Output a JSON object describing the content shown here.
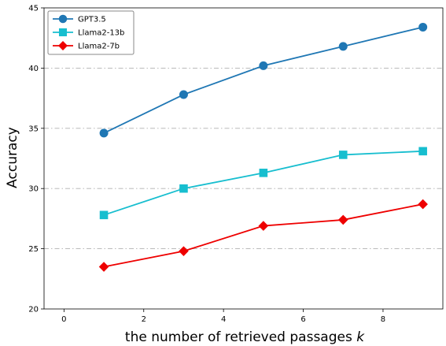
{
  "chart_data": {
    "type": "line",
    "xlabel": "the number of retrieved passages",
    "xlabel_var": "k",
    "ylabel": "Accuracy",
    "xlim": [
      -0.5,
      9.5
    ],
    "ylim": [
      20,
      45
    ],
    "xticks": [
      "0",
      "2",
      "4",
      "6",
      "8"
    ],
    "yticks": [
      "20",
      "25",
      "30",
      "35",
      "40",
      "45"
    ],
    "grid": "horizontal dash-dot",
    "legend_position": "upper-left",
    "x": [
      1,
      3,
      5,
      7,
      9
    ],
    "series": [
      {
        "name": "GPT3.5",
        "color": "#1f77b4",
        "marker": "circle",
        "values": [
          34.6,
          37.8,
          40.2,
          41.8,
          43.4
        ]
      },
      {
        "name": "Llama2-13b",
        "color": "#17becf",
        "marker": "square",
        "values": [
          27.8,
          30.0,
          31.3,
          32.8,
          33.1
        ]
      },
      {
        "name": "Llama2-7b",
        "color": "#ee0000",
        "marker": "diamond",
        "values": [
          23.5,
          24.8,
          26.9,
          27.4,
          28.7
        ]
      }
    ]
  }
}
